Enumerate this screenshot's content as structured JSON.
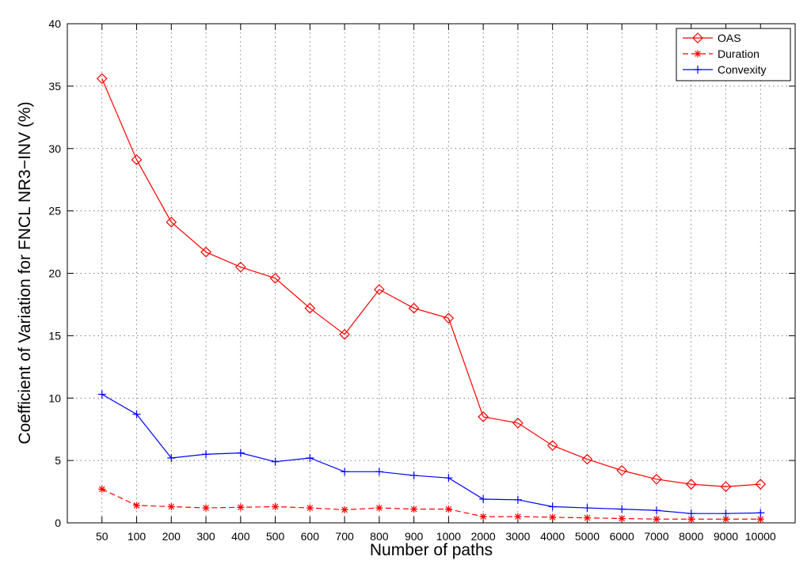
{
  "chart_data": {
    "type": "line",
    "categories": [
      "50",
      "100",
      "200",
      "300",
      "400",
      "500",
      "600",
      "700",
      "800",
      "900",
      "1000",
      "2000",
      "3000",
      "4000",
      "5000",
      "6000",
      "7000",
      "8000",
      "9000",
      "10000"
    ],
    "series": [
      {
        "name": "OAS",
        "color": "#ff0000",
        "line_style": "solid",
        "marker": "diamond",
        "values": [
          35.6,
          29.1,
          24.1,
          21.7,
          20.5,
          19.6,
          17.2,
          15.1,
          18.7,
          17.2,
          16.4,
          8.5,
          8.0,
          6.2,
          5.1,
          4.2,
          3.5,
          3.1,
          2.9,
          3.1
        ]
      },
      {
        "name": "Duration",
        "color": "#ff0000",
        "line_style": "dashed",
        "marker": "asterisk",
        "values": [
          2.7,
          1.4,
          1.3,
          1.2,
          1.25,
          1.3,
          1.2,
          1.05,
          1.2,
          1.1,
          1.1,
          0.5,
          0.5,
          0.45,
          0.4,
          0.35,
          0.3,
          0.3,
          0.3,
          0.3
        ]
      },
      {
        "name": "Convexity",
        "color": "#0000ff",
        "line_style": "solid",
        "marker": "plus",
        "values": [
          10.3,
          8.7,
          5.2,
          5.5,
          5.6,
          4.9,
          5.2,
          4.1,
          4.1,
          3.8,
          3.6,
          1.9,
          1.85,
          1.3,
          1.2,
          1.1,
          1.0,
          0.75,
          0.75,
          0.8
        ]
      }
    ],
    "xlabel": "Number of paths",
    "ylabel": "Coefficient of Variation for FNCL NR3−INV (%)",
    "ylim": [
      0,
      40
    ],
    "yticks": [
      "0",
      "5",
      "10",
      "15",
      "20",
      "25",
      "30",
      "35",
      "40"
    ],
    "grid": true,
    "legend_position": "top-right"
  }
}
